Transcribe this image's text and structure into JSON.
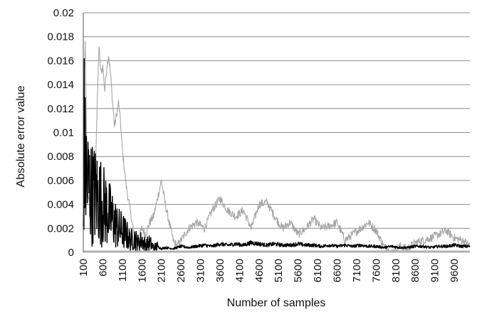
{
  "chart_data": {
    "type": "line",
    "title": "",
    "xlabel": "Number of samples",
    "ylabel": "Absolute error value",
    "xlim": [
      100,
      10000
    ],
    "ylim": [
      0,
      0.02
    ],
    "grid": "horizontal",
    "legend": "none",
    "y_ticks": [
      "0",
      "0.002",
      "0.004",
      "0.006",
      "0.008",
      "0.01",
      "0.012",
      "0.014",
      "0.016",
      "0.018",
      "0.02"
    ],
    "x_ticks": [
      "100",
      "600",
      "1100",
      "1600",
      "2100",
      "2600",
      "3100",
      "3600",
      "4100",
      "4600",
      "5100",
      "5600",
      "6100",
      "6600",
      "7100",
      "7600",
      "8100",
      "8600",
      "9100",
      "9600"
    ],
    "series": [
      {
        "color": "#a6a6a6",
        "x": [
          100,
          150,
          200,
          300,
          400,
          500,
          550,
          600,
          650,
          700,
          750,
          800,
          850,
          900,
          950,
          1000,
          1050,
          1100,
          1150,
          1200,
          1300,
          1400,
          1500,
          1600,
          1700,
          1800,
          1900,
          2000,
          2100,
          2200,
          2300,
          2400,
          2500,
          2600,
          2800,
          3000,
          3200,
          3400,
          3600,
          3800,
          4000,
          4200,
          4400,
          4600,
          4800,
          5000,
          5200,
          5400,
          5600,
          5800,
          6000,
          6200,
          6400,
          6600,
          6800,
          7000,
          7200,
          7400,
          7600,
          7800,
          8000,
          8200,
          8400,
          8600,
          8800,
          9000,
          9200,
          9400,
          9600,
          9800,
          10000
        ],
        "values": [
          0.011,
          0.0175,
          0.005,
          0.004,
          0.006,
          0.0172,
          0.015,
          0.0155,
          0.0135,
          0.0155,
          0.0165,
          0.0148,
          0.0125,
          0.0105,
          0.0115,
          0.0125,
          0.011,
          0.0085,
          0.007,
          0.0055,
          0.0035,
          0.0015,
          0.001,
          0.002,
          0.0015,
          0.0025,
          0.003,
          0.0045,
          0.006,
          0.004,
          0.0025,
          0.001,
          0.0005,
          0.001,
          0.002,
          0.0025,
          0.002,
          0.0035,
          0.0045,
          0.0035,
          0.003,
          0.0035,
          0.002,
          0.004,
          0.0042,
          0.003,
          0.002,
          0.0025,
          0.0015,
          0.002,
          0.0028,
          0.002,
          0.0022,
          0.0025,
          0.001,
          0.0015,
          0.002,
          0.0025,
          0.0018,
          0.0005,
          0.0,
          0.0005,
          0.0003,
          0.0008,
          0.001,
          0.0012,
          0.0015,
          0.0018,
          0.0012,
          0.001,
          0.0006
        ]
      },
      {
        "color": "#000000",
        "x": [
          100,
          120,
          150,
          200,
          250,
          300,
          400,
          500,
          600,
          700,
          800,
          900,
          1000,
          1100,
          1200,
          1300,
          1400,
          1500,
          1600,
          1700,
          1800,
          1900,
          2000,
          2100,
          2200,
          2400,
          2600,
          2800,
          3000,
          3200,
          3400,
          3600,
          3800,
          4000,
          4200,
          4400,
          4600,
          4800,
          5000,
          5200,
          5400,
          5600,
          5800,
          6000,
          6200,
          6400,
          6600,
          6800,
          7000,
          7200,
          7400,
          7600,
          7800,
          8000,
          8200,
          8400,
          8600,
          8800,
          9000,
          9200,
          9400,
          9600,
          9800,
          10000
        ],
        "values": [
          0.002,
          0.0095,
          0.007,
          0.006,
          0.0055,
          0.005,
          0.0048,
          0.0045,
          0.004,
          0.0035,
          0.003,
          0.0025,
          0.002,
          0.0018,
          0.0015,
          0.001,
          0.0012,
          0.0008,
          0.001,
          0.0006,
          0.0008,
          0.0004,
          0.0005,
          0.0003,
          0.0004,
          0.0003,
          0.0005,
          0.0004,
          0.0005,
          0.0006,
          0.0005,
          0.0007,
          0.0006,
          0.0007,
          0.0006,
          0.0008,
          0.0007,
          0.0006,
          0.0007,
          0.0006,
          0.0006,
          0.0007,
          0.0006,
          0.0006,
          0.0005,
          0.0006,
          0.0005,
          0.0006,
          0.0005,
          0.0006,
          0.0005,
          0.0005,
          0.0004,
          0.0005,
          0.0004,
          0.0004,
          0.0005,
          0.0005,
          0.0004,
          0.0005,
          0.0005,
          0.0006,
          0.0005,
          0.0005
        ]
      }
    ]
  }
}
